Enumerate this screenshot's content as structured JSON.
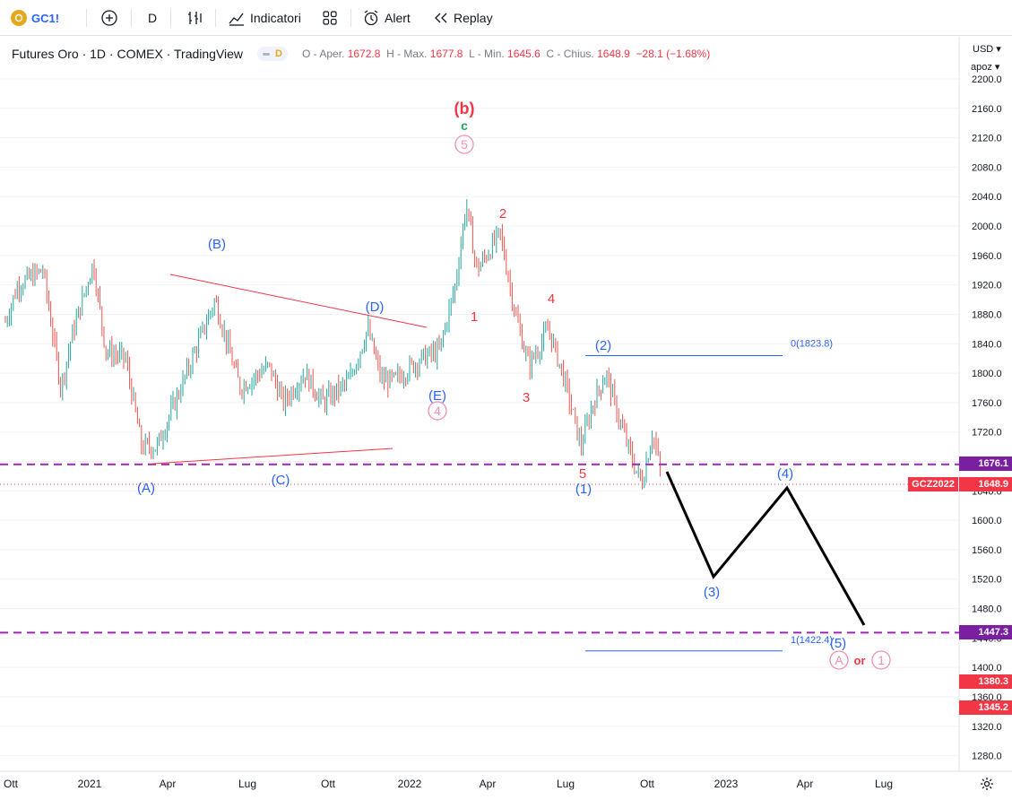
{
  "toolbar": {
    "symbol": "GC1!",
    "interval": "D",
    "indicators_label": "Indicatori",
    "alert_label": "Alert",
    "replay_label": "Replay",
    "icons": [
      "add-symbol-icon",
      "compare-icon",
      "indicators-icon",
      "templates-icon",
      "alert-icon",
      "replay-icon"
    ]
  },
  "legend": {
    "title": "Futures Oro · 1D · COMEX · TradingView",
    "pill": "D",
    "open_label": "O - Aper.",
    "open": "1672.8",
    "high_label": "H - Max.",
    "high": "1677.8",
    "low_label": "L - Min.",
    "low": "1645.6",
    "close_label": "C - Chius.",
    "close": "1648.9",
    "change": "−28.1 (−1.68%)"
  },
  "price_axis": {
    "currency": "USD ▾",
    "scale_mode": "apoz ▾",
    "ticks": [
      "2200.0",
      "2160.0",
      "2120.0",
      "2080.0",
      "2040.0",
      "2000.0",
      "1960.0",
      "1920.0",
      "1880.0",
      "1840.0",
      "1800.0",
      "1760.0",
      "1720.0",
      "1680.0",
      "1640.0",
      "1600.0",
      "1560.0",
      "1520.0",
      "1480.0",
      "1440.0",
      "1400.0",
      "1360.0",
      "1320.0",
      "1280.0"
    ],
    "tags": [
      {
        "text": "1676.1",
        "color": "#7b1fa2"
      },
      {
        "text": "GCZ2022",
        "color": "#f23645"
      },
      {
        "text": "1648.9",
        "color": "#f23645"
      },
      {
        "text": "1447.3",
        "color": "#7b1fa2"
      },
      {
        "text": "1380.3",
        "color": "#f23645"
      },
      {
        "text": "1345.2",
        "color": "#f23645"
      }
    ]
  },
  "time_axis": {
    "labels": [
      "Ott",
      "2021",
      "Apr",
      "Lug",
      "Ott",
      "2022",
      "Apr",
      "Lug",
      "Ott",
      "2023",
      "Apr",
      "Lug"
    ]
  },
  "chart_data": {
    "type": "candlestick",
    "instrument": "Futures Oro · 1D · COMEX",
    "y_range": [
      1250,
      2210
    ],
    "levels": [
      {
        "price": 1676.1,
        "style": "dashed",
        "color": "#9c27b0"
      },
      {
        "price": 1648.9,
        "style": "dotted",
        "color": "#f23645"
      },
      {
        "price": 1447.3,
        "style": "dashed",
        "color": "#9c27b0"
      }
    ],
    "fib_levels": [
      {
        "label": "0(1823.8)",
        "price": 1823.8
      },
      {
        "label": "1(1422.4)",
        "price": 1422.4
      }
    ],
    "waves": [
      {
        "label": "(b)",
        "color": "#f23645",
        "price": 2130
      },
      {
        "label": "c",
        "color": "#26a65b",
        "price": 2105
      },
      {
        "label": "5",
        "color": "#f48fb1",
        "price": 2082
      },
      {
        "label": "(B)",
        "color": "#2962ff",
        "price": 1970
      },
      {
        "label": "(D)",
        "color": "#2962ff",
        "price": 1880
      },
      {
        "label": "(E)",
        "color": "#2962ff",
        "price": 1775
      },
      {
        "label": "4",
        "color": "#f48fb1",
        "price": 1752
      },
      {
        "label": "(A)",
        "color": "#2962ff",
        "price": 1635
      },
      {
        "label": "(C)",
        "color": "#2962ff",
        "price": 1641
      },
      {
        "label": "1",
        "color": "#f23645",
        "price": 1862
      },
      {
        "label": "2",
        "color": "#f23645",
        "price": 2010
      },
      {
        "label": "3",
        "color": "#f23645",
        "price": 1777
      },
      {
        "label": "4",
        "color": "#f23645",
        "price": 1888
      },
      {
        "label": "5",
        "color": "#f23645",
        "price": 1660
      },
      {
        "label": "(1)",
        "color": "#2962ff",
        "price": 1635
      },
      {
        "label": "(2)",
        "color": "#2962ff",
        "price": 1842
      },
      {
        "label": "(3)",
        "color": "#2962ff",
        "price": 1498
      },
      {
        "label": "(4)",
        "color": "#2962ff",
        "price": 1660
      },
      {
        "label": "(5)",
        "color": "#2962ff",
        "price": 1432
      },
      {
        "label": "A",
        "color": "#f48fb1",
        "price": 1408
      },
      {
        "label": "or",
        "color": "#f23645",
        "price": 1408
      },
      {
        "label": "1",
        "color": "#f48fb1",
        "price": 1408
      }
    ],
    "projection": [
      {
        "date": "2022-10-12",
        "price": 1665
      },
      {
        "date": "2022-12-05",
        "price": 1522
      },
      {
        "date": "2023-03-01",
        "price": 1643
      },
      {
        "date": "2023-06-01",
        "price": 1453
      }
    ]
  }
}
